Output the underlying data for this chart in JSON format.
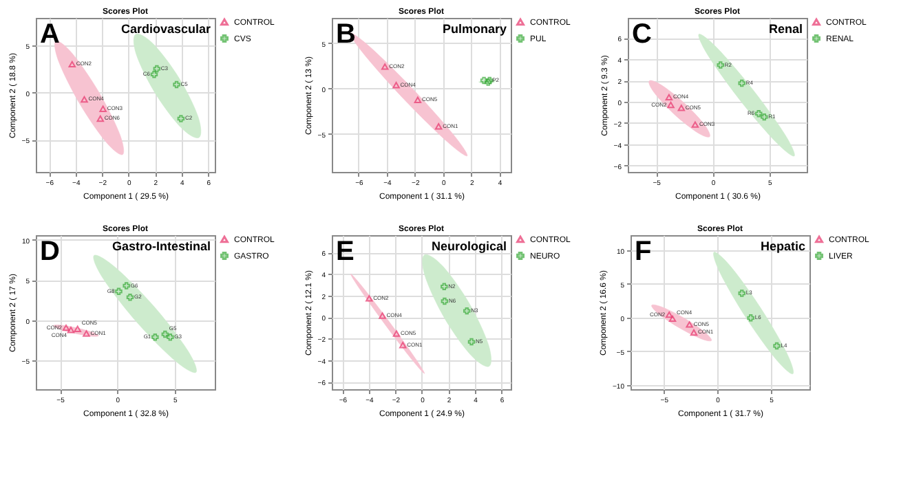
{
  "chart_data": [
    {
      "type": "scatter",
      "title": "Scores Plot",
      "xlabel": "Component 1 ( 29.5 %)",
      "ylabel": "Component 2 ( 18.8 %)",
      "xlim": [
        -7,
        6.5
      ],
      "ylim": [
        -8.4,
        7.9
      ],
      "xticks": [
        -6,
        -4,
        -2,
        0,
        2,
        4,
        6
      ],
      "yticks": [
        -5,
        0,
        5
      ],
      "grid": true,
      "legend": "right",
      "annotations": [
        "A",
        "Cardiovascular",
        {
          "text": "CON2",
          "x": -4.26,
          "y": 3.0
        },
        {
          "text": "CON4",
          "x": -3.34,
          "y": -0.72
        },
        {
          "text": "CON3",
          "x": -1.93,
          "y": -1.72
        },
        {
          "text": "CON6",
          "x": -2.13,
          "y": -2.76
        },
        {
          "text": "C3",
          "x": 2.13,
          "y": 2.52
        },
        {
          "text": "C6",
          "x": 1.93,
          "y": 1.92
        },
        {
          "text": "C5",
          "x": 3.62,
          "y": 0.84
        },
        {
          "text": "C2",
          "x": 3.95,
          "y": -2.76
        }
      ],
      "series": [
        {
          "type": "area",
          "color": "#f7c3d1",
          "x": [
            -5.49,
            -4.24,
            -2.25,
            -0.68,
            -0.45,
            -1.7,
            -3.69,
            -5.26
          ],
          "values": [
            5.44,
            4.12,
            0.06,
            -4.36,
            -6.56,
            -5.24,
            -1.18,
            3.24
          ]
        },
        {
          "type": "area",
          "color": "#cdebcd",
          "x": [
            0.53,
            1.87,
            3.82,
            5.25,
            5.31,
            3.97,
            2.02,
            0.59
          ],
          "values": [
            6.16,
            5.13,
            1.5,
            -2.59,
            -4.76,
            -3.73,
            -0.1,
            3.99
          ]
        },
        {
          "name": "CONTROL",
          "color": "#e8336b",
          "marker": "triangle",
          "x": [
            -4.26,
            -3.34,
            -1.93,
            -2.13
          ],
          "values": [
            3.0,
            -0.72,
            -1.72,
            -2.76
          ]
        },
        {
          "name": "CVS",
          "color": "#3aaa3a",
          "marker": "cross",
          "x": [
            2.13,
            1.93,
            3.62,
            3.95
          ],
          "values": [
            2.52,
            1.92,
            0.84,
            -2.76
          ]
        }
      ]
    },
    {
      "type": "scatter",
      "title": "Scores Plot",
      "xlabel": "Component 1 ( 31.1 %)",
      "ylabel": "Component 2 ( 13 %)",
      "xlim": [
        -7.9,
        4.8
      ],
      "ylim": [
        -9.2,
        7.8
      ],
      "xticks": [
        -6,
        -4,
        -2,
        0,
        2,
        4
      ],
      "yticks": [
        -5,
        0,
        5
      ],
      "grid": true,
      "legend": "right",
      "annotations": [
        "B",
        "Pulmonary",
        {
          "text": "CON2",
          "x": -4.13,
          "y": 2.42
        },
        {
          "text": "CON4",
          "x": -3.33,
          "y": 0.38
        },
        {
          "text": "CON5",
          "x": -1.8,
          "y": -1.25
        },
        {
          "text": "CON1",
          "x": -0.32,
          "y": -4.17
        },
        {
          "text": "P2",
          "x": 3.2,
          "y": 0.9
        }
      ],
      "series": [
        {
          "type": "area",
          "color": "#f7c3d1",
          "x": [
            -6.59,
            -5.13,
            -2.1,
            0.73,
            1.71,
            0.25,
            -2.78,
            -5.61
          ],
          "values": [
            6.13,
            4.51,
            -0.13,
            -5.08,
            -7.43,
            -5.81,
            -1.17,
            3.78
          ]
        },
        {
          "type": "area",
          "color": "#cdebcd",
          "x": [
            3.73,
            3.55,
            3.13,
            2.71,
            2.53,
            2.71,
            3.13,
            3.55
          ],
          "values": [
            0.84,
            0.97,
            0.99,
            0.78,
            0.74,
            0.61,
            0.59,
            0.68
          ]
        },
        {
          "name": "CONTROL",
          "color": "#e8336b",
          "marker": "triangle",
          "x": [
            -4.13,
            -3.33,
            -1.8,
            -0.32
          ],
          "values": [
            2.42,
            0.38,
            -1.25,
            -4.17
          ]
        },
        {
          "name": "PUL",
          "color": "#3aaa3a",
          "marker": "cross",
          "x": [
            2.9,
            3.2,
            3.3
          ],
          "values": [
            0.9,
            0.7,
            0.9
          ]
        }
      ]
    },
    {
      "type": "scatter",
      "title": "Scores Plot",
      "xlabel": "Component 1 ( 30.6 %)",
      "ylabel": "Component 2 ( 9.3 %)",
      "xlim": [
        -7.5,
        8.3
      ],
      "ylim": [
        -6.6,
        7.9
      ],
      "xticks": [
        -5,
        0,
        5
      ],
      "yticks": [
        -6,
        -4,
        -2,
        0,
        2,
        4,
        6
      ],
      "grid": true,
      "legend": "right",
      "annotations": [
        "C",
        "Renal",
        {
          "text": "CON4",
          "x": -3.86,
          "y": 0.43
        },
        {
          "text": "CON2",
          "x": -3.7,
          "y": -0.29
        },
        {
          "text": "CON5",
          "x": -2.77,
          "y": -0.57
        },
        {
          "text": "CON3",
          "x": -1.55,
          "y": -2.14
        },
        {
          "text": "R2",
          "x": 0.69,
          "y": 3.46
        },
        {
          "text": "R4",
          "x": 2.57,
          "y": 1.75
        },
        {
          "text": "R6",
          "x": 4.06,
          "y": -1.11
        },
        {
          "text": "R1",
          "x": 4.55,
          "y": -1.43
        }
      ],
      "series": [
        {
          "type": "area",
          "color": "#f7c3d1",
          "x": [
            -5.61,
            -4.52,
            -2.5,
            -0.74,
            -0.27,
            -1.36,
            -3.38,
            -5.14
          ],
          "values": [
            1.96,
            1.57,
            -0.13,
            -2.14,
            -3.28,
            -2.89,
            -1.19,
            0.82
          ]
        },
        {
          "type": "area",
          "color": "#cdebcd",
          "x": [
            -1.22,
            0.42,
            3.56,
            6.37,
            7.2,
            5.56,
            2.42,
            -0.39
          ],
          "values": [
            6.36,
            5.03,
            1.12,
            -3.07,
            -5.1,
            -3.77,
            0.14,
            4.33
          ]
        },
        {
          "name": "CONTROL",
          "color": "#e8336b",
          "marker": "triangle",
          "x": [
            -3.86,
            -3.7,
            -2.77,
            -1.55
          ],
          "values": [
            0.43,
            -0.29,
            -0.57,
            -2.14
          ]
        },
        {
          "name": "RENAL",
          "color": "#3aaa3a",
          "marker": "cross",
          "x": [
            0.69,
            2.57,
            4.06,
            4.55
          ],
          "values": [
            3.46,
            1.75,
            -1.11,
            -1.43
          ]
        }
      ]
    },
    {
      "type": "scatter",
      "title": "Scores Plot",
      "xlabel": "Component 1 ( 32.8 %)",
      "ylabel": "Component 2 ( 17 %)",
      "xlim": [
        -7.1,
        8.5
      ],
      "ylim": [
        -8.6,
        10.6
      ],
      "xticks": [
        -5,
        0,
        5
      ],
      "yticks": [
        -5,
        0,
        5,
        10
      ],
      "grid": true,
      "legend": "right",
      "annotations": [
        "D",
        "Gastro-Intestinal",
        {
          "text": "CON2",
          "x": -4.46,
          "y": -0.94
        },
        {
          "text": "CON4",
          "x": -4.04,
          "y": -1.21
        },
        {
          "text": "CON5",
          "x": -3.46,
          "y": -1.08
        },
        {
          "text": "CON1",
          "x": -2.69,
          "y": -1.66
        },
        {
          "text": "G6",
          "x": 0.8,
          "y": 4.3
        },
        {
          "text": "G8",
          "x": 0.13,
          "y": 3.59
        },
        {
          "text": "G2",
          "x": 1.12,
          "y": 2.87
        },
        {
          "text": "G1",
          "x": 3.3,
          "y": -2.11
        },
        {
          "text": "G5",
          "x": 4.17,
          "y": -1.75
        },
        {
          "text": "G3",
          "x": 4.62,
          "y": -2.11
        }
      ],
      "series": [
        {
          "type": "area",
          "color": "#f7c3d1",
          "x": [
            -5.55,
            -4.93,
            -3.53,
            -2.16,
            -1.63,
            -2.25,
            -3.65,
            -5.02
          ],
          "values": [
            -0.67,
            -0.61,
            -0.95,
            -1.5,
            -1.93,
            -1.99,
            -1.65,
            -1.1
          ]
        },
        {
          "type": "area",
          "color": "#cdebcd",
          "x": [
            -2.02,
            -0.17,
            3.2,
            6.11,
            6.86,
            5.01,
            1.64,
            -1.27
          ],
          "values": [
            8.07,
            6.59,
            1.72,
            -3.7,
            -6.49,
            -5.01,
            -0.14,
            5.28
          ]
        },
        {
          "name": "CONTROL",
          "color": "#e8336b",
          "marker": "triangle",
          "x": [
            -4.46,
            -4.04,
            -3.46,
            -2.69
          ],
          "values": [
            -0.94,
            -1.21,
            -1.08,
            -1.66
          ]
        },
        {
          "name": "GASTRO",
          "color": "#3aaa3a",
          "marker": "cross",
          "x": [
            0.8,
            0.13,
            1.12,
            3.3,
            4.17,
            4.62
          ],
          "values": [
            4.3,
            3.59,
            2.87,
            -2.11,
            -1.75,
            -2.11
          ]
        }
      ]
    },
    {
      "type": "scatter",
      "title": "Scores Plot",
      "xlabel": "Component 1 ( 24.9 %)",
      "ylabel": "Component 2 ( 12.1 %)",
      "xlim": [
        -6.8,
        6.7
      ],
      "ylim": [
        -6.7,
        7.6
      ],
      "xticks": [
        -6,
        -4,
        -2,
        0,
        2,
        4,
        6
      ],
      "yticks": [
        -6,
        -4,
        -2,
        0,
        2,
        4,
        6
      ],
      "grid": true,
      "legend": "right",
      "annotations": [
        "E",
        "Neurological",
        {
          "text": "CON2",
          "x": -3.98,
          "y": 1.73
        },
        {
          "text": "CON4",
          "x": -2.98,
          "y": 0.13
        },
        {
          "text": "CON5",
          "x": -1.92,
          "y": -1.53
        },
        {
          "text": "CON1",
          "x": -1.44,
          "y": -2.6
        },
        {
          "text": "N2",
          "x": 1.68,
          "y": 2.83
        },
        {
          "text": "N6",
          "x": 1.71,
          "y": 1.47
        },
        {
          "text": "N3",
          "x": 3.39,
          "y": 0.57
        },
        {
          "text": "N5",
          "x": 3.74,
          "y": -2.3
        }
      ],
      "series": [
        {
          "type": "area",
          "color": "#f7c3d1",
          "x": [
            -5.37,
            -4.45,
            -2.44,
            -0.52,
            0.19,
            -0.73,
            -2.74,
            -4.66
          ],
          "values": [
            4.0,
            2.75,
            -0.48,
            -3.79,
            -5.24,
            -3.99,
            -0.76,
            2.55
          ]
        },
        {
          "type": "area",
          "color": "#cdebcd",
          "x": [
            0.19,
            1.57,
            3.57,
            5.02,
            5.07,
            3.69,
            1.69,
            0.24
          ],
          "values": [
            5.77,
            4.73,
            1.27,
            -2.58,
            -4.57,
            -3.53,
            -0.07,
            3.78
          ]
        },
        {
          "name": "CONTROL",
          "color": "#e8336b",
          "marker": "triangle",
          "x": [
            -3.98,
            -2.98,
            -1.92,
            -1.44
          ],
          "values": [
            1.73,
            0.13,
            -1.53,
            -2.6
          ]
        },
        {
          "name": "NEURO",
          "color": "#3aaa3a",
          "marker": "cross",
          "x": [
            1.68,
            1.71,
            3.39,
            3.74
          ],
          "values": [
            2.83,
            1.47,
            0.57,
            -2.3
          ]
        }
      ]
    },
    {
      "type": "scatter",
      "title": "Scores Plot",
      "xlabel": "Component 1 ( 31.7 %)",
      "ylabel": "Component 2 ( 16.6 %)",
      "xlim": [
        -8.1,
        8.6
      ],
      "ylim": [
        -10.6,
        12.2
      ],
      "xticks": [
        -5,
        0,
        5
      ],
      "yticks": [
        -10,
        -5,
        0,
        5,
        10
      ],
      "grid": true,
      "legend": "right",
      "annotations": [
        "F",
        "Hepatic",
        {
          "text": "CON2",
          "x": -4.49,
          "y": 0.43
        },
        {
          "text": "CON4",
          "x": -4.18,
          "y": -0.16
        },
        {
          "text": "CON5",
          "x": -2.6,
          "y": -1.02
        },
        {
          "text": "CON1",
          "x": -2.19,
          "y": -2.2
        },
        {
          "text": "L3",
          "x": 2.29,
          "y": 3.6
        },
        {
          "text": "L6",
          "x": 3.12,
          "y": -0.05
        },
        {
          "text": "L4",
          "x": 5.55,
          "y": -4.19
        }
      ],
      "series": [
        {
          "type": "area",
          "color": "#f7c3d1",
          "x": [
            -6.13,
            -5.13,
            -3.08,
            -1.18,
            -0.55,
            -1.55,
            -3.6,
            -5.5
          ],
          "values": [
            1.83,
            1.55,
            -0.09,
            -2.14,
            -3.39,
            -3.11,
            -1.47,
            0.58
          ]
        },
        {
          "type": "area",
          "color": "#cdebcd",
          "x": [
            -0.31,
            1.26,
            4.06,
            6.46,
            7.05,
            5.48,
            2.68,
            0.28
          ],
          "values": [
            9.68,
            7.54,
            1.38,
            -5.19,
            -8.32,
            -6.18,
            -0.02,
            6.55
          ]
        },
        {
          "name": "CONTROL",
          "color": "#e8336b",
          "marker": "triangle",
          "x": [
            -4.49,
            -4.18,
            -2.6,
            -2.19
          ],
          "values": [
            0.43,
            -0.16,
            -1.02,
            -2.2
          ]
        },
        {
          "name": "LIVER",
          "color": "#3aaa3a",
          "marker": "cross",
          "x": [
            2.29,
            3.12,
            5.55
          ],
          "values": [
            3.6,
            -0.05,
            -4.19
          ]
        }
      ]
    }
  ]
}
